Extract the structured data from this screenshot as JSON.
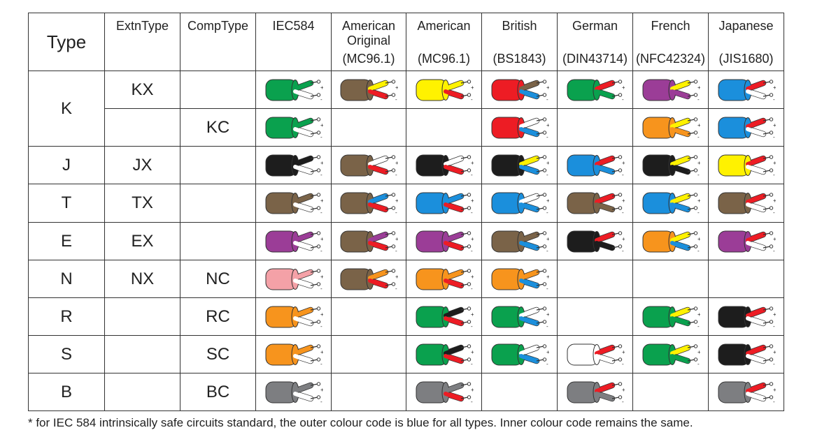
{
  "header": {
    "type": "Type",
    "extn": "ExtnType",
    "comp": "CompType",
    "standards": [
      {
        "name": "IEC584",
        "code": ""
      },
      {
        "name": "American Original",
        "code": "(MC96.1)"
      },
      {
        "name": "American",
        "code": "(MC96.1)"
      },
      {
        "name": "British",
        "code": "(BS1843)"
      },
      {
        "name": "German",
        "code": "(DIN43714)"
      },
      {
        "name": "French",
        "code": "(NFC42324)"
      },
      {
        "name": "Japanese",
        "code": "(JIS1680)"
      }
    ]
  },
  "colors": {
    "green": "#0aa14e",
    "brown": "#7a6348",
    "yellow": "#fff200",
    "red": "#ed1c24",
    "white": "#ffffff",
    "blue": "#1b8fdc",
    "purple": "#9b3d97",
    "black": "#1d1d1d",
    "orange": "#f7941d",
    "pink": "#f4a1a7",
    "grey": "#7d7e81"
  },
  "rows": [
    {
      "type": "K",
      "extn": "KX",
      "comp": "",
      "cables": [
        {
          "outer": "green",
          "pos": "green",
          "neg": "white"
        },
        {
          "outer": "brown",
          "pos": "yellow",
          "neg": "red"
        },
        {
          "outer": "yellow",
          "pos": "yellow",
          "neg": "red"
        },
        {
          "outer": "red",
          "pos": "brown",
          "neg": "blue"
        },
        {
          "outer": "green",
          "pos": "red",
          "neg": "green"
        },
        {
          "outer": "purple",
          "pos": "yellow",
          "neg": "purple"
        },
        {
          "outer": "blue",
          "pos": "red",
          "neg": "white"
        }
      ]
    },
    {
      "type": "",
      "extn": "",
      "comp": "KC",
      "cables": [
        {
          "outer": "green",
          "pos": "green",
          "neg": "white"
        },
        null,
        null,
        {
          "outer": "red",
          "pos": "white",
          "neg": "blue"
        },
        null,
        {
          "outer": "orange",
          "pos": "yellow",
          "neg": "orange"
        },
        {
          "outer": "blue",
          "pos": "red",
          "neg": "white"
        }
      ]
    },
    {
      "type": "J",
      "extn": "JX",
      "comp": "",
      "cables": [
        {
          "outer": "black",
          "pos": "black",
          "neg": "white"
        },
        {
          "outer": "brown",
          "pos": "white",
          "neg": "red"
        },
        {
          "outer": "black",
          "pos": "white",
          "neg": "red"
        },
        {
          "outer": "black",
          "pos": "yellow",
          "neg": "blue"
        },
        {
          "outer": "blue",
          "pos": "red",
          "neg": "blue"
        },
        {
          "outer": "black",
          "pos": "yellow",
          "neg": "black"
        },
        {
          "outer": "yellow",
          "pos": "red",
          "neg": "white"
        }
      ]
    },
    {
      "type": "T",
      "extn": "TX",
      "comp": "",
      "cables": [
        {
          "outer": "brown",
          "pos": "brown",
          "neg": "white"
        },
        {
          "outer": "brown",
          "pos": "blue",
          "neg": "red"
        },
        {
          "outer": "blue",
          "pos": "blue",
          "neg": "red"
        },
        {
          "outer": "blue",
          "pos": "white",
          "neg": "blue"
        },
        {
          "outer": "brown",
          "pos": "red",
          "neg": "brown"
        },
        {
          "outer": "blue",
          "pos": "yellow",
          "neg": "blue"
        },
        {
          "outer": "brown",
          "pos": "red",
          "neg": "white"
        }
      ]
    },
    {
      "type": "E",
      "extn": "EX",
      "comp": "",
      "cables": [
        {
          "outer": "purple",
          "pos": "purple",
          "neg": "white"
        },
        {
          "outer": "brown",
          "pos": "purple",
          "neg": "red"
        },
        {
          "outer": "purple",
          "pos": "purple",
          "neg": "red"
        },
        {
          "outer": "brown",
          "pos": "brown",
          "neg": "blue"
        },
        {
          "outer": "black",
          "pos": "red",
          "neg": "black"
        },
        {
          "outer": "orange",
          "pos": "yellow",
          "neg": "blue"
        },
        {
          "outer": "purple",
          "pos": "red",
          "neg": "white"
        }
      ]
    },
    {
      "type": "N",
      "extn": "NX",
      "comp": "NC",
      "cables": [
        {
          "outer": "pink",
          "pos": "pink",
          "neg": "white"
        },
        {
          "outer": "brown",
          "pos": "orange",
          "neg": "red"
        },
        {
          "outer": "orange",
          "pos": "orange",
          "neg": "red"
        },
        {
          "outer": "orange",
          "pos": "orange",
          "neg": "blue"
        },
        null,
        null,
        null
      ]
    },
    {
      "type": "R",
      "extn": "",
      "comp": "RC",
      "cables": [
        {
          "outer": "orange",
          "pos": "orange",
          "neg": "white"
        },
        null,
        {
          "outer": "green",
          "pos": "black",
          "neg": "red"
        },
        {
          "outer": "green",
          "pos": "white",
          "neg": "blue"
        },
        null,
        {
          "outer": "green",
          "pos": "yellow",
          "neg": "green"
        },
        {
          "outer": "black",
          "pos": "red",
          "neg": "white"
        }
      ]
    },
    {
      "type": "S",
      "extn": "",
      "comp": "SC",
      "cables": [
        {
          "outer": "orange",
          "pos": "orange",
          "neg": "white"
        },
        null,
        {
          "outer": "green",
          "pos": "black",
          "neg": "red"
        },
        {
          "outer": "green",
          "pos": "white",
          "neg": "blue"
        },
        {
          "outer": "white",
          "pos": "red",
          "neg": "white"
        },
        {
          "outer": "green",
          "pos": "yellow",
          "neg": "green"
        },
        {
          "outer": "black",
          "pos": "red",
          "neg": "white"
        }
      ]
    },
    {
      "type": "B",
      "extn": "",
      "comp": "BC",
      "cables": [
        {
          "outer": "grey",
          "pos": "grey",
          "neg": "white"
        },
        null,
        {
          "outer": "grey",
          "pos": "grey",
          "neg": "red"
        },
        null,
        {
          "outer": "grey",
          "pos": "red",
          "neg": "grey"
        },
        null,
        {
          "outer": "grey",
          "pos": "red",
          "neg": "white"
        }
      ]
    }
  ],
  "footnote": "* for IEC 584 intrinsically safe circuits standard, the outer colour code is blue for all types. Inner colour code remains the same."
}
